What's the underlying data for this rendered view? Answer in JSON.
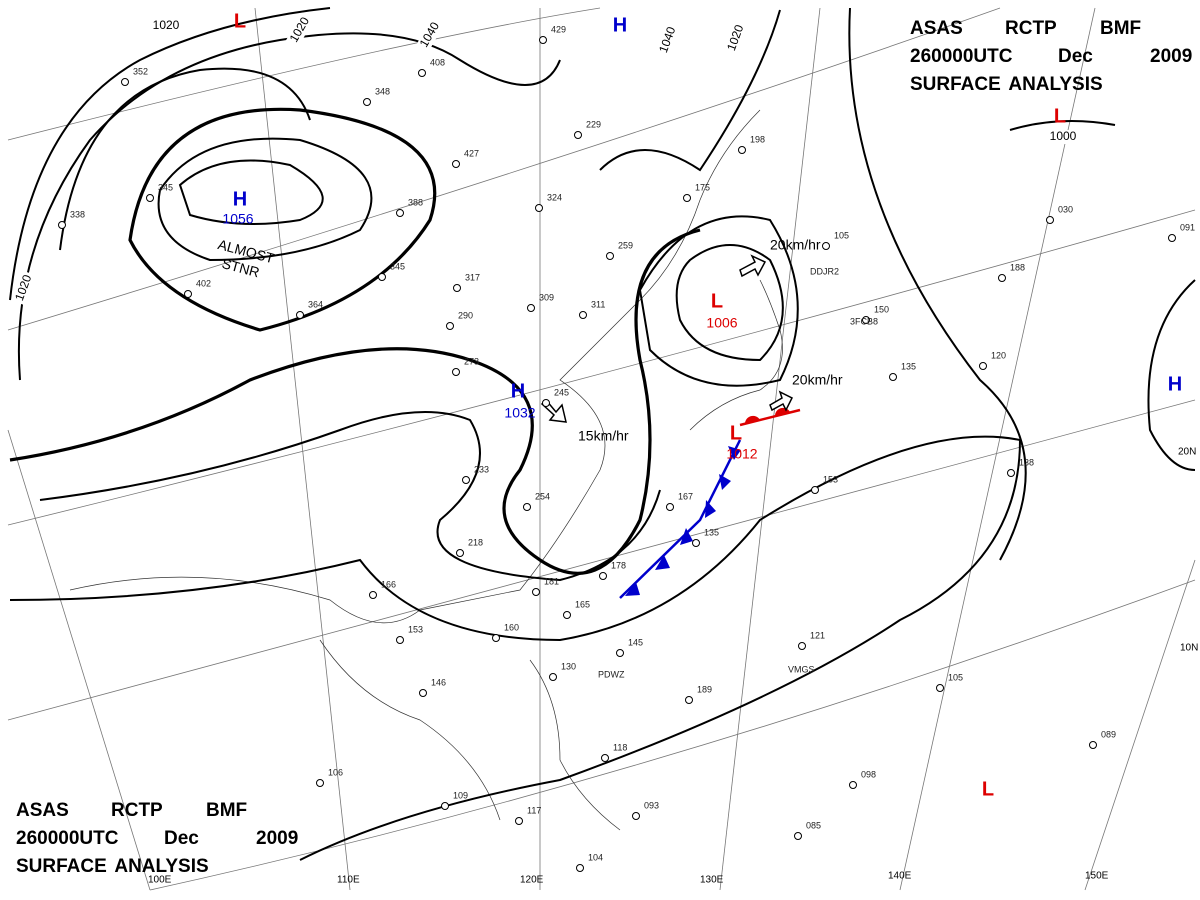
{
  "header_top": {
    "line1": [
      "ASAS",
      "RCTP",
      "BMF"
    ],
    "line2": [
      "260000UTC",
      "Dec",
      "2009"
    ],
    "line3": "SURFACE ANALYSIS"
  },
  "header_bottom": {
    "line1": [
      "ASAS",
      "RCTP",
      "BMF"
    ],
    "line2": [
      "260000UTC",
      "Dec",
      "2009"
    ],
    "line3": "SURFACE ANALYSIS"
  },
  "isobar_labels": [
    "1020",
    "1020",
    "1040",
    "1040",
    "1020",
    "1020",
    "1000"
  ],
  "systems": [
    {
      "letter": "H",
      "pressure": "1056",
      "color": "#0000cc"
    },
    {
      "letter": "H",
      "pressure": "1032",
      "color": "#0000cc"
    },
    {
      "letter": "L",
      "pressure": "1006",
      "color": "#dd0000"
    },
    {
      "letter": "L",
      "pressure": "1012",
      "color": "#dd0000"
    },
    {
      "letter": "H",
      "color": "#0000cc"
    },
    {
      "letter": "L",
      "color": "#dd0000"
    },
    {
      "letter": "L",
      "color": "#dd0000"
    },
    {
      "letter": "H",
      "color": "#0000cc"
    },
    {
      "letter": "L",
      "color": "#dd0000"
    }
  ],
  "motion_labels": [
    "20km/hr",
    "15km/hr",
    "20km/hr"
  ],
  "stationary_note": [
    "ALMOST",
    "STNR"
  ],
  "grid_labels": [
    "110E",
    "120E",
    "130E",
    "140E",
    "150E",
    "20N",
    "10N",
    "100E"
  ],
  "stations": [
    "429",
    "408",
    "348",
    "229",
    "427",
    "388",
    "345",
    "317",
    "309",
    "311",
    "290",
    "273",
    "364",
    "245",
    "233",
    "254",
    "218",
    "166",
    "153",
    "146",
    "106",
    "109",
    "117",
    "104",
    "093",
    "085",
    "098",
    "089",
    "105",
    "121",
    "145",
    "160",
    "181",
    "165",
    "178",
    "135",
    "167",
    "130",
    "118",
    "189",
    "153",
    "138",
    "150",
    "135",
    "120",
    "188",
    "030",
    "091",
    "198",
    "175",
    "105",
    "259",
    "324",
    "352",
    "345",
    "338",
    "402"
  ],
  "callsigns": [
    "DDJR2",
    "3FCB8",
    "PDWZ",
    "VMGS"
  ]
}
